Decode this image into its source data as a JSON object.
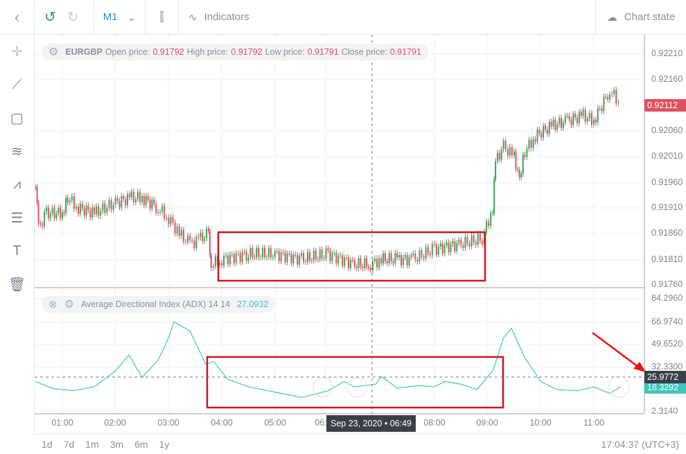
{
  "toolbar": {
    "back_icon": "chevron-left-icon",
    "undo_icon": "undo-icon",
    "redo_icon": "redo-icon",
    "timeframe": "M1",
    "chart_type_icon": "candlestick-icon",
    "indicators_label": "Indicators",
    "chart_state_label": "Chart state"
  },
  "left_tools": [
    "crosshair-icon",
    "trend-line-icon",
    "rectangle-icon",
    "channel-icon",
    "pattern-icon",
    "fibonacci-icon",
    "text-icon",
    "trash-icon"
  ],
  "price_legend": {
    "symbol": "EURGBP",
    "open_label": "Open price:",
    "open": "0.91792",
    "high_label": "High price:",
    "high": "0.91792",
    "low_label": "Low price:",
    "low": "0.91791",
    "close_label": "Close price:",
    "close": "0.91791"
  },
  "adx_legend": {
    "name": "Average Directional Index (ADX) 14 14",
    "value": "27.0932"
  },
  "price_axis": [
    "0.92210",
    "0.92160",
    "0.92060",
    "0.92010",
    "0.91960",
    "0.91910",
    "0.91860",
    "0.91810",
    "0.91760"
  ],
  "price_tag": "0.92112",
  "adx_axis": [
    "84.2960",
    "66.9740",
    "49.6520",
    "32.3300",
    "2.3140"
  ],
  "adx_crosshair_tag": "25.9772",
  "adx_value_tag": "18.3292",
  "time_axis": [
    "01:00",
    "02:00",
    "03:00",
    "04:00",
    "05:00",
    "06:00",
    "08:00",
    "09:00",
    "10:00",
    "11:00"
  ],
  "crosshair_time": "Sep 23, 2020 • 06:49",
  "ranges": [
    "1d",
    "7d",
    "1m",
    "3m",
    "6m",
    "1y"
  ],
  "clock": "17:04:37 (UTC+3)",
  "colors": {
    "up": "#3aa55a",
    "down": "#e0505e",
    "adx": "#3fc7bd",
    "highlight": "#d0141a"
  },
  "chart_data": {
    "type": "line",
    "price": {
      "x": [
        0.5,
        0.55,
        0.7,
        1.0,
        1.1,
        1.3,
        1.6,
        2.0,
        2.3,
        2.5,
        2.8,
        3.0,
        3.2,
        3.4,
        3.6,
        3.75,
        3.8,
        4.0,
        4.5,
        5.0,
        5.5,
        6.0,
        6.5,
        6.8,
        7.0,
        7.3,
        7.6,
        8.0,
        8.5,
        8.9,
        9.1,
        9.15,
        9.3,
        9.5,
        9.6,
        9.7,
        9.9,
        10.2,
        10.5,
        10.8,
        11.0,
        11.3,
        11.5
      ],
      "y": [
        0.9195,
        0.9187,
        0.919,
        0.919,
        0.9193,
        0.9191,
        0.919,
        0.9192,
        0.9193,
        0.9193,
        0.9191,
        0.9189,
        0.9186,
        0.9184,
        0.9185,
        0.9186,
        0.918,
        0.9181,
        0.9182,
        0.9182,
        0.9181,
        0.9182,
        0.918,
        0.918,
        0.9181,
        0.9181,
        0.9181,
        0.9183,
        0.9184,
        0.9185,
        0.9191,
        0.92,
        0.9203,
        0.9201,
        0.9197,
        0.9202,
        0.9205,
        0.9207,
        0.9208,
        0.9209,
        0.9208,
        0.9214,
        0.92112
      ]
    },
    "adx": {
      "x": [
        0.5,
        0.8,
        1.2,
        1.6,
        2.0,
        2.25,
        2.5,
        2.8,
        3.0,
        3.1,
        3.4,
        3.7,
        3.85,
        4.1,
        4.5,
        5.0,
        5.5,
        6.0,
        6.3,
        6.5,
        6.9,
        7.0,
        7.3,
        7.7,
        8.0,
        8.2,
        8.5,
        8.8,
        9.1,
        9.3,
        9.45,
        9.7,
        10.0,
        10.3,
        10.7,
        11.0,
        11.3,
        11.5
      ],
      "y": [
        22,
        17,
        15,
        18,
        30,
        42,
        25,
        38,
        55,
        67,
        60,
        35,
        37,
        24,
        18,
        14,
        10,
        15,
        22,
        18,
        20,
        26,
        17,
        19,
        18,
        22,
        20,
        16,
        30,
        55,
        62,
        40,
        22,
        16,
        15,
        18,
        13,
        18
      ]
    }
  }
}
